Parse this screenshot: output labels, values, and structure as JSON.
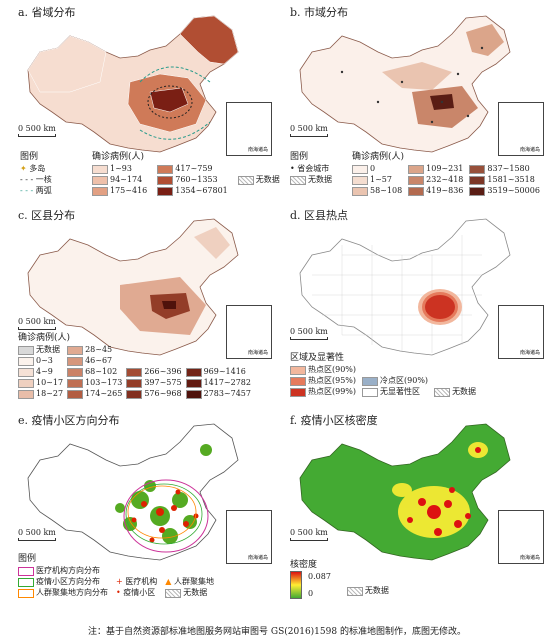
{
  "panels": {
    "a": {
      "title": "a. 省域分布",
      "legend_title": "确诊病例(人)",
      "symbols_title": "图例",
      "symbols": [
        "多岛",
        "一核",
        "两弧"
      ],
      "classes": [
        {
          "label": "1~93",
          "color": "#f6ddd0"
        },
        {
          "label": "94~174",
          "color": "#eec0aa"
        },
        {
          "label": "175~416",
          "color": "#e2a083"
        },
        {
          "label": "417~759",
          "color": "#cf7a58"
        },
        {
          "label": "760~1353",
          "color": "#b14e33"
        },
        {
          "label": "1354~67801",
          "color": "#7a1f14"
        }
      ],
      "nodata": "无数据"
    },
    "b": {
      "title": "b. 市域分布",
      "legend_title": "确诊病例(人)",
      "symbols_title": "图例",
      "symbols": [
        "省会城市",
        "无数据"
      ],
      "classes": [
        {
          "label": "0",
          "color": "#fbf0ea"
        },
        {
          "label": "1~57",
          "color": "#f4ddd0"
        },
        {
          "label": "58~108",
          "color": "#eac4b0"
        },
        {
          "label": "109~231",
          "color": "#dba58a"
        },
        {
          "label": "232~418",
          "color": "#c9866a"
        },
        {
          "label": "419~836",
          "color": "#b36a4f"
        },
        {
          "label": "837~1580",
          "color": "#97503a"
        },
        {
          "label": "1581~3518",
          "color": "#7c3727"
        },
        {
          "label": "3519~50006",
          "color": "#5a1d14"
        }
      ]
    },
    "c": {
      "title": "c. 区县分布",
      "legend_title": "确诊病例(人)",
      "nodata": "无数据",
      "classes": [
        {
          "label": "0~3",
          "color": "#fbf2ec"
        },
        {
          "label": "4~9",
          "color": "#f5e1d6"
        },
        {
          "label": "10~17",
          "color": "#efd0c0"
        },
        {
          "label": "18~27",
          "color": "#e8bda9"
        },
        {
          "label": "28~45",
          "color": "#e0aa92"
        },
        {
          "label": "46~67",
          "color": "#d6967c"
        },
        {
          "label": "68~102",
          "color": "#cb8267"
        },
        {
          "label": "103~173",
          "color": "#bf6f53"
        },
        {
          "label": "174~265",
          "color": "#b25d42"
        },
        {
          "label": "266~396",
          "color": "#a34c34"
        },
        {
          "label": "397~575",
          "color": "#933d28"
        },
        {
          "label": "576~968",
          "color": "#822f1f"
        },
        {
          "label": "969~1416",
          "color": "#722417"
        },
        {
          "label": "1417~2782",
          "color": "#611a11"
        },
        {
          "label": "2783~7457",
          "color": "#4f120b"
        }
      ]
    },
    "d": {
      "title": "d. 区县热点",
      "legend_title": "区域及显著性",
      "classes": [
        {
          "label": "热点区(90%)",
          "color": "#f2b79d"
        },
        {
          "label": "热点区(95%)",
          "color": "#e57a5c"
        },
        {
          "label": "热点区(99%)",
          "color": "#cc3322"
        },
        {
          "label": "冷点区(90%)",
          "color": "#9ab0c8"
        },
        {
          "label": "无显著性区",
          "color": "#ffffff"
        },
        {
          "label": "无数据",
          "color": "#d9d9d9"
        }
      ]
    },
    "e": {
      "title": "e. 疫情小区方向分布",
      "legend_title": "图例",
      "items": [
        "医疗机构方向分布",
        "疫情小区方向分布",
        "人群聚集地方向分布",
        "医疗机构",
        "人群聚集地",
        "疫情小区",
        "无数据"
      ],
      "colors": {
        "medical": "#cc3399",
        "community": "#33aa33",
        "crowd": "#ff8800",
        "point_red": "#dd2200",
        "point_green": "#55aa22"
      }
    },
    "f": {
      "title": "f. 疫情小区核密度",
      "legend_title": "核密度",
      "max": "0.087",
      "min": "0",
      "nodata": "无数据",
      "colors": {
        "low": "#44aa33",
        "mid": "#ffee33",
        "high": "#dd1111"
      }
    }
  },
  "scale_label": "0  500 km",
  "inset_label": "南海诸岛",
  "footnote": "注：基于自然资源部标准地图服务网站审图号 GS(2016)1598 的标准地图制作，底图无修改。"
}
